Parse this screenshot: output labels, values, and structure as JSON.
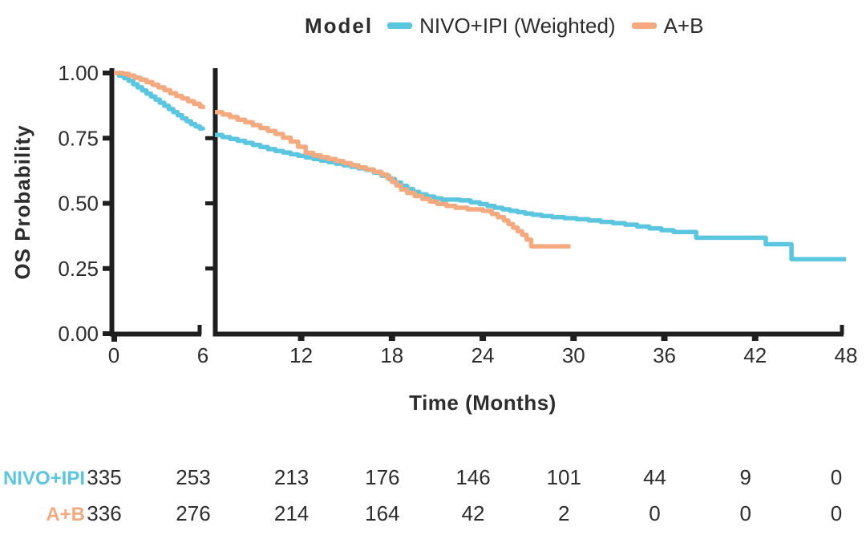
{
  "legend": {
    "title": "Model",
    "items": [
      {
        "label": "NIVO+IPI (Weighted)",
        "color": "#5BC6E0"
      },
      {
        "label": "A+B",
        "color": "#F4A97E"
      }
    ]
  },
  "colors": {
    "axis": "#1f1f1f",
    "text": "#2d2d2d"
  },
  "chart_data": {
    "type": "line",
    "subtype": "kaplan_meier_step",
    "title": "",
    "x_label": "Time (Months)",
    "y_label": "OS Probability",
    "x_ticks": [
      0,
      6,
      12,
      18,
      24,
      30,
      36,
      42,
      48
    ],
    "y_ticks": [
      {
        "label": "1.00",
        "value": 1.0
      },
      {
        "label": "0.75",
        "value": 0.75
      },
      {
        "label": "0.50",
        "value": 0.5
      },
      {
        "label": "0.25",
        "value": 0.25
      },
      {
        "label": "0.00",
        "value": 0.0
      }
    ],
    "x_axis_break": {
      "panel1_range": [
        0,
        6
      ],
      "panel2_range": [
        6.3,
        48
      ]
    },
    "ylim": [
      0,
      1
    ],
    "grid": false,
    "legend_position": "top",
    "series": [
      {
        "name": "NIVO+IPI (Weighted)",
        "color": "#5BC6E0",
        "panel1_points": [
          [
            0,
            1
          ],
          [
            0.35,
            0.99
          ],
          [
            0.7,
            0.98
          ],
          [
            1,
            0.97
          ],
          [
            1.3,
            0.957
          ],
          [
            1.6,
            0.945
          ],
          [
            1.9,
            0.933
          ],
          [
            2.2,
            0.921
          ],
          [
            2.5,
            0.91
          ],
          [
            2.8,
            0.898
          ],
          [
            3.1,
            0.886
          ],
          [
            3.4,
            0.874
          ],
          [
            3.7,
            0.862
          ],
          [
            4,
            0.85
          ],
          [
            4.3,
            0.838
          ],
          [
            4.6,
            0.826
          ],
          [
            4.9,
            0.815
          ],
          [
            5.2,
            0.804
          ],
          [
            5.5,
            0.795
          ],
          [
            5.8,
            0.787
          ],
          [
            6,
            0.78
          ]
        ],
        "panel2_points": [
          [
            6.3,
            0.762
          ],
          [
            6.8,
            0.754
          ],
          [
            7.3,
            0.747
          ],
          [
            7.8,
            0.74
          ],
          [
            8.3,
            0.732
          ],
          [
            8.8,
            0.724
          ],
          [
            9.3,
            0.716
          ],
          [
            9.8,
            0.708
          ],
          [
            10.3,
            0.701
          ],
          [
            10.8,
            0.695
          ],
          [
            11.3,
            0.688
          ],
          [
            11.8,
            0.682
          ],
          [
            12.3,
            0.676
          ],
          [
            12.8,
            0.67
          ],
          [
            13.3,
            0.664
          ],
          [
            13.8,
            0.658
          ],
          [
            14.3,
            0.652
          ],
          [
            14.8,
            0.646
          ],
          [
            15.3,
            0.64
          ],
          [
            15.8,
            0.634
          ],
          [
            16.3,
            0.628
          ],
          [
            16.8,
            0.618
          ],
          [
            17.3,
            0.606
          ],
          [
            17.8,
            0.593
          ],
          [
            18.2,
            0.58
          ],
          [
            18.6,
            0.567
          ],
          [
            19,
            0.555
          ],
          [
            19.4,
            0.544
          ],
          [
            19.8,
            0.534
          ],
          [
            20.3,
            0.526
          ],
          [
            20.8,
            0.519
          ],
          [
            21.3,
            0.514
          ],
          [
            22.5,
            0.511
          ],
          [
            23.2,
            0.504
          ],
          [
            23.8,
            0.497
          ],
          [
            24.3,
            0.49
          ],
          [
            24.8,
            0.483
          ],
          [
            25.3,
            0.477
          ],
          [
            25.8,
            0.471
          ],
          [
            26.3,
            0.466
          ],
          [
            26.8,
            0.461
          ],
          [
            27.3,
            0.456
          ],
          [
            27.9,
            0.451
          ],
          [
            28.6,
            0.447
          ],
          [
            29.4,
            0.443
          ],
          [
            30.2,
            0.439
          ],
          [
            31,
            0.434
          ],
          [
            31.8,
            0.429
          ],
          [
            32.6,
            0.424
          ],
          [
            33.4,
            0.418
          ],
          [
            34.2,
            0.411
          ],
          [
            35,
            0.404
          ],
          [
            35.8,
            0.397
          ],
          [
            36.6,
            0.39
          ],
          [
            38.1,
            0.368
          ],
          [
            42.7,
            0.343
          ],
          [
            44.4,
            0.286
          ],
          [
            48,
            0.286
          ]
        ]
      },
      {
        "name": "A+B",
        "color": "#F4A97E",
        "panel1_points": [
          [
            0,
            1
          ],
          [
            0.6,
            0.997
          ],
          [
            1,
            0.99
          ],
          [
            1.4,
            0.982
          ],
          [
            1.8,
            0.974
          ],
          [
            2.2,
            0.965
          ],
          [
            2.6,
            0.955
          ],
          [
            3,
            0.945
          ],
          [
            3.4,
            0.934
          ],
          [
            3.8,
            0.922
          ],
          [
            4.2,
            0.912
          ],
          [
            4.6,
            0.902
          ],
          [
            5,
            0.892
          ],
          [
            5.4,
            0.882
          ],
          [
            5.8,
            0.871
          ],
          [
            6,
            0.862
          ]
        ],
        "panel2_points": [
          [
            6.3,
            0.85
          ],
          [
            6.8,
            0.841
          ],
          [
            7.3,
            0.831
          ],
          [
            7.8,
            0.821
          ],
          [
            8.3,
            0.811
          ],
          [
            8.8,
            0.8
          ],
          [
            9.3,
            0.789
          ],
          [
            9.8,
            0.778
          ],
          [
            10.3,
            0.766
          ],
          [
            10.8,
            0.752
          ],
          [
            11.3,
            0.737
          ],
          [
            11.8,
            0.717
          ],
          [
            12.3,
            0.694
          ],
          [
            12.8,
            0.684
          ],
          [
            13.3,
            0.677
          ],
          [
            13.8,
            0.67
          ],
          [
            14.3,
            0.662
          ],
          [
            14.8,
            0.654
          ],
          [
            15.3,
            0.646
          ],
          [
            15.8,
            0.638
          ],
          [
            16.3,
            0.63
          ],
          [
            16.8,
            0.621
          ],
          [
            17.3,
            0.61
          ],
          [
            17.7,
            0.596
          ],
          [
            18,
            0.582
          ],
          [
            18.3,
            0.568
          ],
          [
            18.6,
            0.553
          ],
          [
            19,
            0.54
          ],
          [
            19.5,
            0.528
          ],
          [
            20,
            0.517
          ],
          [
            20.5,
            0.507
          ],
          [
            21,
            0.498
          ],
          [
            21.6,
            0.49
          ],
          [
            22.2,
            0.483
          ],
          [
            23,
            0.477
          ],
          [
            24,
            0.471
          ],
          [
            24.6,
            0.459
          ],
          [
            25,
            0.447
          ],
          [
            25.4,
            0.434
          ],
          [
            25.7,
            0.421
          ],
          [
            26,
            0.407
          ],
          [
            26.3,
            0.393
          ],
          [
            26.6,
            0.379
          ],
          [
            26.9,
            0.361
          ],
          [
            27.2,
            0.335
          ],
          [
            29.8,
            0.335
          ]
        ]
      }
    ],
    "risk_table": {
      "months": [
        0,
        6,
        12,
        18,
        24,
        30,
        36,
        42,
        48
      ],
      "rows": [
        {
          "label": "NIVO+IPI",
          "color": "#5BC6E0",
          "counts": [
            335,
            253,
            213,
            176,
            146,
            101,
            44,
            9,
            0
          ]
        },
        {
          "label": "A+B",
          "color": "#F4A97E",
          "counts": [
            336,
            276,
            214,
            164,
            42,
            2,
            0,
            0,
            0
          ]
        }
      ]
    }
  }
}
